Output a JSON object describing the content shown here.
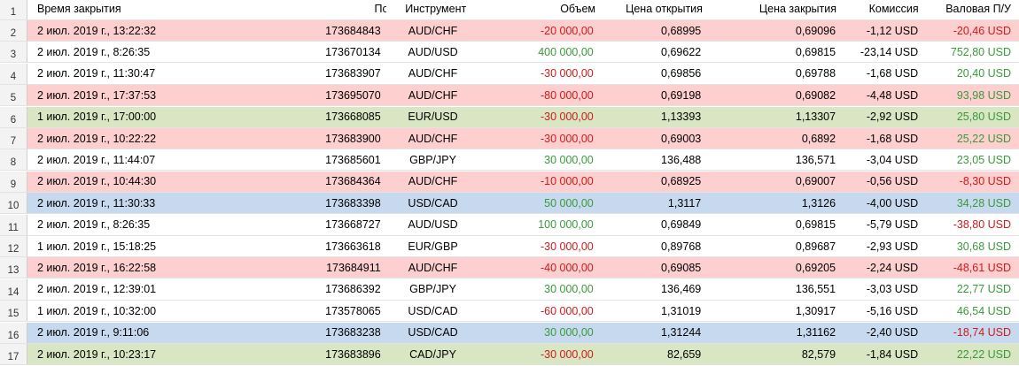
{
  "headers": {
    "row_number": "1",
    "close_time": "Время закрытия",
    "position_id": "Позиция ID",
    "instrument": "Инструмент",
    "volume": "Объем",
    "open_price": "Цена открытия",
    "close_price": "Цена закрытия",
    "commission": "Комиссия",
    "gross_pl": "Валовая П/У"
  },
  "colors": {
    "red_row": "#fdcfcf",
    "green_row": "#d8e6c3",
    "blue_row": "#c7d9ef",
    "positive_text": "#3a9a3a",
    "negative_text": "#d01a1a"
  },
  "rows": [
    {
      "num": "2",
      "bg": "red",
      "time": "2 июл. 2019 г., 13:22:32",
      "id": "173684843",
      "instrument": "AUD/CHF",
      "volume": "-20 000,00",
      "volume_sign": "neg",
      "open": "0,68995",
      "close": "0,69096",
      "commission": "-1,12 USD",
      "pl": "-20,46 USD",
      "pl_sign": "neg"
    },
    {
      "num": "3",
      "bg": "white",
      "time": "2 июл. 2019 г., 8:26:35",
      "id": "173670134",
      "instrument": "AUD/USD",
      "volume": "400 000,00",
      "volume_sign": "pos",
      "open": "0,69622",
      "close": "0,69815",
      "commission": "-23,14 USD",
      "pl": "752,80 USD",
      "pl_sign": "pos"
    },
    {
      "num": "4",
      "bg": "white",
      "time": "2 июл. 2019 г., 11:30:47",
      "id": "173683907",
      "instrument": "AUD/CHF",
      "volume": "-30 000,00",
      "volume_sign": "neg",
      "open": "0,69856",
      "close": "0,69788",
      "commission": "-1,68 USD",
      "pl": "20,40 USD",
      "pl_sign": "pos"
    },
    {
      "num": "5",
      "bg": "red",
      "time": "2 июл. 2019 г., 17:37:53",
      "id": "173695070",
      "instrument": "AUD/CHF",
      "volume": "-80 000,00",
      "volume_sign": "neg",
      "open": "0,69198",
      "close": "0,69082",
      "commission": "-4,48 USD",
      "pl": "93,98 USD",
      "pl_sign": "pos"
    },
    {
      "num": "6",
      "bg": "green",
      "time": "1 июл. 2019 г., 17:00:00",
      "id": "173668085",
      "instrument": "EUR/USD",
      "volume": "-30 000,00",
      "volume_sign": "neg",
      "open": "1,13393",
      "close": "1,13307",
      "commission": "-2,92 USD",
      "pl": "25,80 USD",
      "pl_sign": "pos"
    },
    {
      "num": "7",
      "bg": "red",
      "time": "2 июл. 2019 г., 10:22:22",
      "id": "173683900",
      "instrument": "AUD/CHF",
      "volume": "-30 000,00",
      "volume_sign": "neg",
      "open": "0,69003",
      "close": "0,6892",
      "commission": "-1,68 USD",
      "pl": "25,22 USD",
      "pl_sign": "pos"
    },
    {
      "num": "8",
      "bg": "white",
      "time": "2 июл. 2019 г., 11:44:07",
      "id": "173685601",
      "instrument": "GBP/JPY",
      "volume": "30 000,00",
      "volume_sign": "pos",
      "open": "136,488",
      "close": "136,571",
      "commission": "-3,04 USD",
      "pl": "23,05 USD",
      "pl_sign": "pos"
    },
    {
      "num": "9",
      "bg": "red",
      "time": "2 июл. 2019 г., 10:44:30",
      "id": "173684364",
      "instrument": "AUD/CHF",
      "volume": "-10 000,00",
      "volume_sign": "neg",
      "open": "0,68925",
      "close": "0,69007",
      "commission": "-0,56 USD",
      "pl": "-8,30 USD",
      "pl_sign": "neg"
    },
    {
      "num": "10",
      "bg": "blue",
      "time": "2 июл. 2019 г., 11:30:33",
      "id": "173683398",
      "instrument": "USD/CAD",
      "volume": "50 000,00",
      "volume_sign": "pos",
      "open": "1,3117",
      "close": "1,3126",
      "commission": "-4,00 USD",
      "pl": "34,28 USD",
      "pl_sign": "pos"
    },
    {
      "num": "11",
      "bg": "white",
      "time": "2 июл. 2019 г., 8:26:35",
      "id": "173668727",
      "instrument": "AUD/USD",
      "volume": "100 000,00",
      "volume_sign": "pos",
      "open": "0,69849",
      "close": "0,69815",
      "commission": "-5,79 USD",
      "pl": "-38,80 USD",
      "pl_sign": "neg"
    },
    {
      "num": "12",
      "bg": "white",
      "time": "1 июл. 2019 г., 15:18:25",
      "id": "173663618",
      "instrument": "EUR/GBP",
      "volume": "-30 000,00",
      "volume_sign": "neg",
      "open": "0,89768",
      "close": "0,89687",
      "commission": "-2,93 USD",
      "pl": "30,68 USD",
      "pl_sign": "pos"
    },
    {
      "num": "13",
      "bg": "red",
      "time": "2 июл. 2019 г., 16:22:58",
      "id": "173684911",
      "instrument": "AUD/CHF",
      "volume": "-40 000,00",
      "volume_sign": "neg",
      "open": "0,69085",
      "close": "0,69205",
      "commission": "-2,24 USD",
      "pl": "-48,61 USD",
      "pl_sign": "neg"
    },
    {
      "num": "14",
      "bg": "white",
      "time": "2 июл. 2019 г., 12:39:01",
      "id": "173686392",
      "instrument": "GBP/JPY",
      "volume": "30 000,00",
      "volume_sign": "pos",
      "open": "136,469",
      "close": "136,551",
      "commission": "-3,03 USD",
      "pl": "22,77 USD",
      "pl_sign": "pos"
    },
    {
      "num": "15",
      "bg": "white",
      "time": "1 июл. 2019 г., 10:32:00",
      "id": "173578065",
      "instrument": "USD/CAD",
      "volume": "-60 000,00",
      "volume_sign": "neg",
      "open": "1,31019",
      "close": "1,30917",
      "commission": "-5,16 USD",
      "pl": "46,54 USD",
      "pl_sign": "pos"
    },
    {
      "num": "16",
      "bg": "blue",
      "time": "2 июл. 2019 г., 9:11:06",
      "id": "173683238",
      "instrument": "USD/CAD",
      "volume": "30 000,00",
      "volume_sign": "pos",
      "open": "1,31244",
      "close": "1,31162",
      "commission": "-2,40 USD",
      "pl": "-18,74 USD",
      "pl_sign": "neg"
    },
    {
      "num": "17",
      "bg": "green",
      "time": "2 июл. 2019 г., 10:23:17",
      "id": "173683896",
      "instrument": "CAD/JPY",
      "volume": "-30 000,00",
      "volume_sign": "neg",
      "open": "82,659",
      "close": "82,579",
      "commission": "-1,84 USD",
      "pl": "22,22 USD",
      "pl_sign": "pos"
    }
  ]
}
